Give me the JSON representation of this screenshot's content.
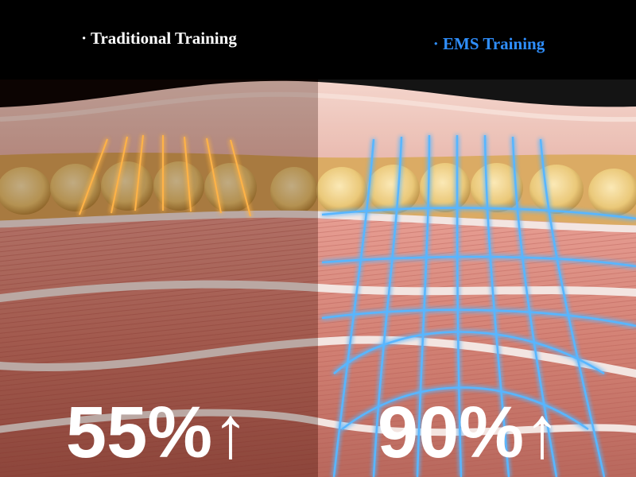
{
  "panels": [
    {
      "label": "· Traditional Training",
      "stat": "55%↑"
    },
    {
      "label": "· EMS Training",
      "stat": "90%↑"
    }
  ]
}
